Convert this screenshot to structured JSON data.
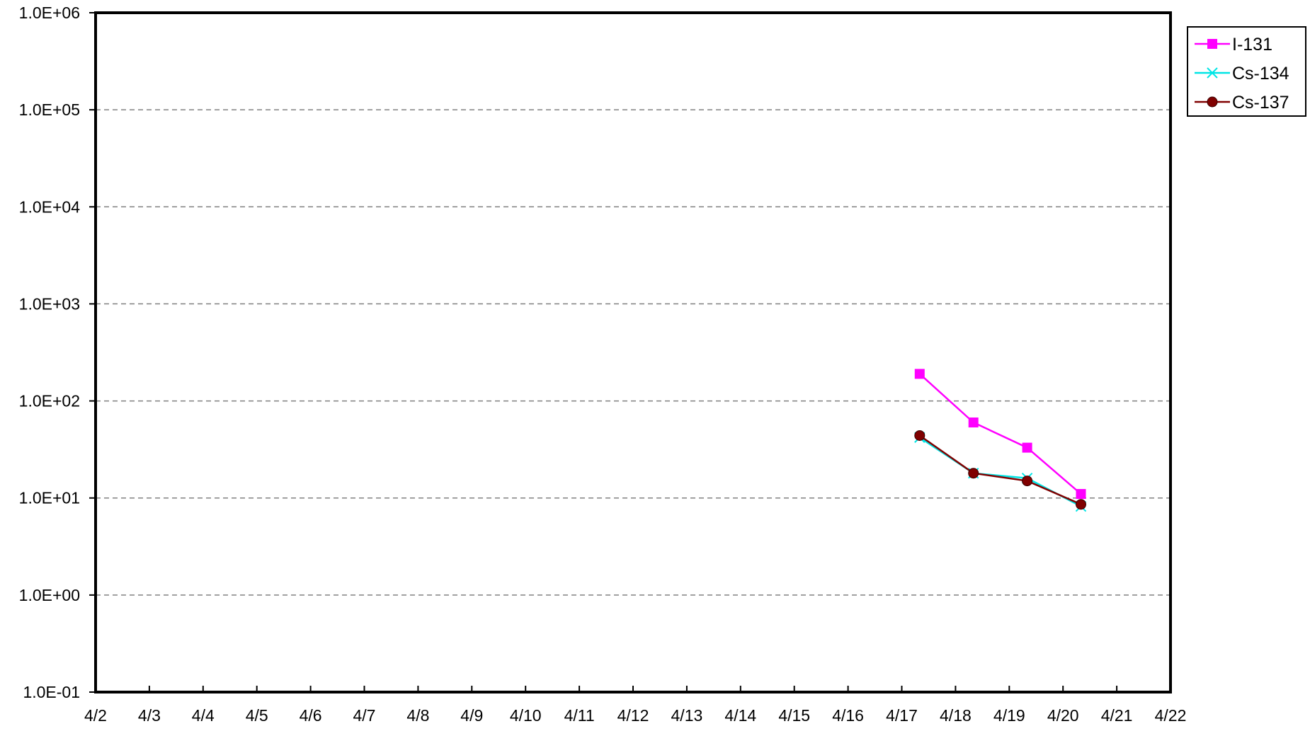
{
  "chart_data": {
    "type": "line",
    "y_scale": "log",
    "ylim": [
      0.1,
      1000000
    ],
    "y_ticks": [
      {
        "value": 1000000,
        "label": "1.0E+06"
      },
      {
        "value": 100000,
        "label": "1.0E+05"
      },
      {
        "value": 10000,
        "label": "1.0E+04"
      },
      {
        "value": 1000,
        "label": "1.0E+03"
      },
      {
        "value": 100,
        "label": "1.0E+02"
      },
      {
        "value": 10,
        "label": "1.0E+01"
      },
      {
        "value": 1,
        "label": "1.0E+00"
      },
      {
        "value": 0.1,
        "label": "1.0E-01"
      }
    ],
    "xlim": [
      "4/2",
      "4/22"
    ],
    "x_ticks": [
      "4/2",
      "4/3",
      "4/4",
      "4/5",
      "4/6",
      "4/7",
      "4/8",
      "4/9",
      "4/10",
      "4/11",
      "4/12",
      "4/13",
      "4/14",
      "4/15",
      "4/16",
      "4/17",
      "4/18",
      "4/19",
      "4/20",
      "4/21",
      "4/22"
    ],
    "grid": "horizontal dashed",
    "legend_position": "top-right outside",
    "series": [
      {
        "name": "I-131",
        "color": "#ff00ff",
        "marker": "square",
        "x": [
          "4/17 08:00",
          "4/18 08:00",
          "4/19 08:00",
          "4/20 08:00"
        ],
        "y": [
          190,
          60,
          33,
          11
        ]
      },
      {
        "name": "Cs-134",
        "color": "#00e5e5",
        "marker": "x",
        "x": [
          "4/17 08:00",
          "4/18 08:00",
          "4/19 08:00",
          "4/20 08:00"
        ],
        "y": [
          42,
          18,
          16,
          8.2
        ]
      },
      {
        "name": "Cs-137",
        "color": "#800000",
        "marker": "circle",
        "x": [
          "4/17 08:00",
          "4/18 08:00",
          "4/19 08:00",
          "4/20 08:00"
        ],
        "y": [
          44,
          18,
          15,
          8.6
        ]
      }
    ]
  }
}
